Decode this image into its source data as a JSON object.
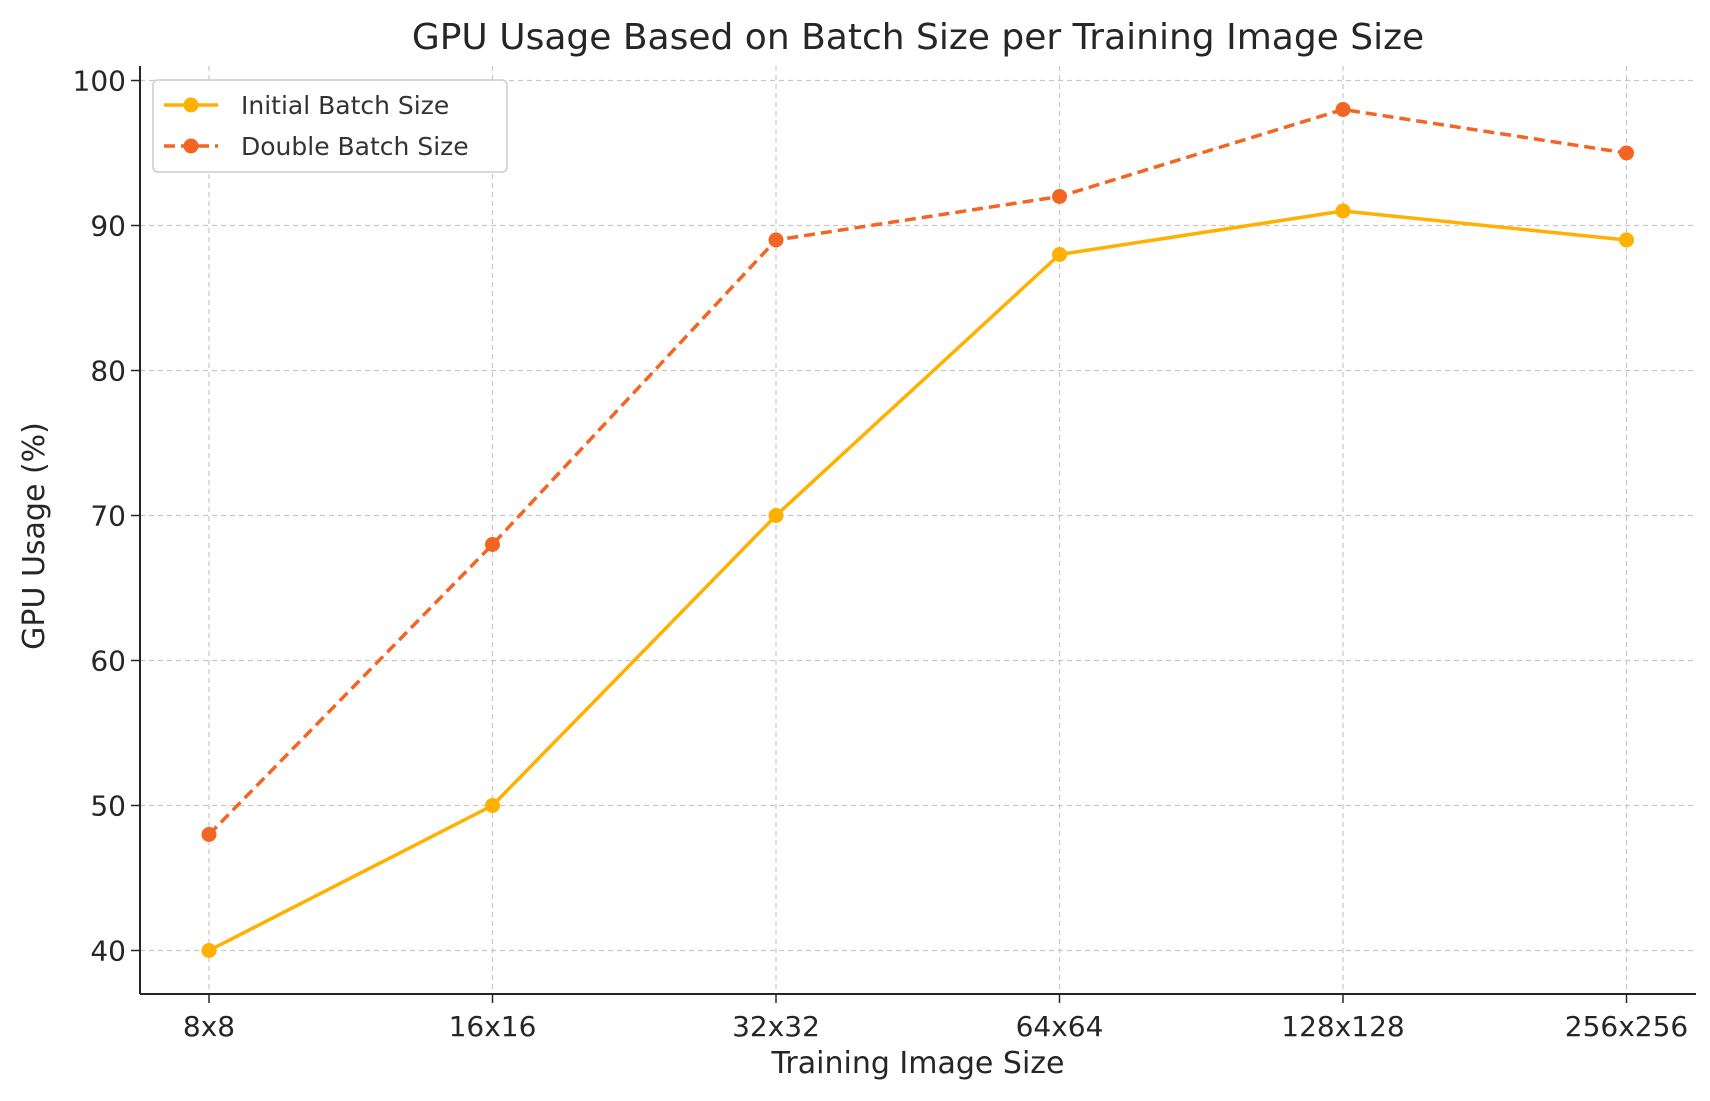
{
  "chart_data": {
    "type": "line",
    "title": "GPU Usage Based on Batch Size per Training Image Size",
    "xlabel": "Training Image Size",
    "ylabel": "GPU Usage (%)",
    "categories": [
      "8x8",
      "16x16",
      "32x32",
      "64x64",
      "128x128",
      "256x256"
    ],
    "ylim": [
      37,
      101
    ],
    "yticks": [
      40,
      50,
      60,
      70,
      80,
      90,
      100
    ],
    "grid": true,
    "legend_position": "top-left",
    "series": [
      {
        "name": "Initial Batch Size",
        "values": [
          40,
          50,
          70,
          88,
          91,
          89
        ],
        "color": "#FFB000",
        "line_style": "solid",
        "marker": "circle"
      },
      {
        "name": "Double Batch Size",
        "values": [
          48,
          68,
          89,
          92,
          98,
          95
        ],
        "color": "#F26522",
        "line_style": "dashed",
        "marker": "circle"
      }
    ]
  }
}
